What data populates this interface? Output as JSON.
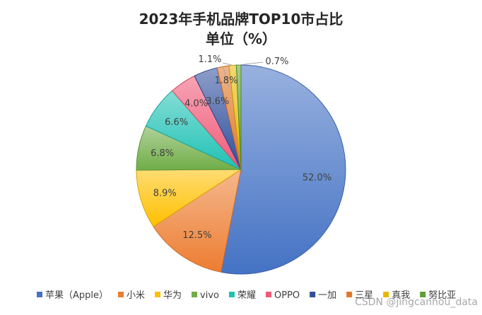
{
  "chart_data": {
    "type": "pie",
    "title_lines": [
      "2023年手机品牌TOP10市占比",
      "单位（%）"
    ],
    "categories": [
      "苹果（Apple）",
      "小米",
      "华为",
      "vivo",
      "荣耀",
      "OPPO",
      "一加",
      "三星",
      "真我",
      "努比亚"
    ],
    "values": [
      52.0,
      12.5,
      8.9,
      6.8,
      6.6,
      4.0,
      3.6,
      1.8,
      1.1,
      0.7
    ],
    "value_labels": [
      "52.0%",
      "12.5%",
      "8.9%",
      "6.8%",
      "6.6%",
      "4.0%",
      "3.6%",
      "1.8%",
      "1.1%",
      "0.7%"
    ],
    "colors": [
      "#4472C4",
      "#ED7D31",
      "#FFC000",
      "#70AD47",
      "#1FC1B4",
      "#F05A78",
      "#2F4F9C",
      "#E0782A",
      "#E6B800",
      "#5BA033"
    ],
    "legend_position": "bottom",
    "start_angle": "12 o'clock",
    "direction": "clockwise"
  },
  "watermark": "CSDN @jingcanhou_data"
}
